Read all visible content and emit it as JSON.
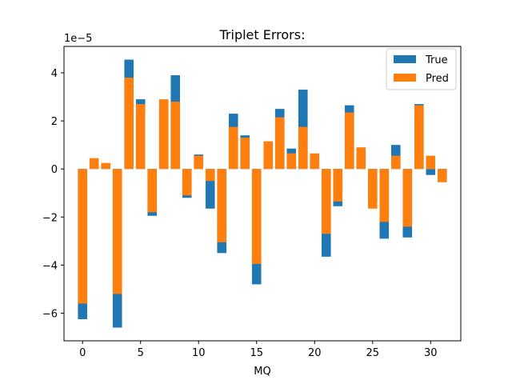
{
  "chart_data": {
    "type": "bar",
    "title": "Triplet Errors:",
    "xlabel": "MQ",
    "ylabel": "",
    "scale_label": "1e−5",
    "xlim": [
      -1.6,
      32.6
    ],
    "ylim": [
      -7.15,
      5.1
    ],
    "xticks": [
      0,
      5,
      10,
      15,
      20,
      25,
      30
    ],
    "yticks": [
      -6,
      -4,
      -2,
      0,
      2,
      4
    ],
    "ytick_labels": [
      "−6",
      "−4",
      "−2",
      "0",
      "2",
      "4"
    ],
    "legend_position": "upper-right",
    "x": [
      0,
      1,
      2,
      3,
      4,
      5,
      6,
      7,
      8,
      9,
      10,
      11,
      12,
      13,
      14,
      15,
      16,
      17,
      18,
      19,
      20,
      21,
      22,
      23,
      24,
      25,
      26,
      27,
      28,
      29,
      30,
      31
    ],
    "series": [
      {
        "name": "True",
        "color": "#1f77b4",
        "values": [
          -6.25,
          0.3,
          0.15,
          -6.6,
          4.55,
          2.9,
          -1.95,
          2.6,
          3.9,
          -1.2,
          0.6,
          -1.65,
          -3.5,
          2.3,
          1.4,
          -4.8,
          0.4,
          2.5,
          0.85,
          3.3,
          0.5,
          -3.65,
          -1.55,
          2.65,
          0.6,
          -1.4,
          -2.9,
          1.0,
          -2.85,
          2.7,
          -0.25,
          -0.4
        ]
      },
      {
        "name": "Pred",
        "color": "#ff7f0e",
        "values": [
          -5.6,
          0.45,
          0.25,
          -5.2,
          3.8,
          2.7,
          -1.8,
          2.9,
          2.8,
          -1.1,
          0.55,
          -0.5,
          -3.05,
          1.75,
          1.3,
          -3.95,
          1.15,
          2.15,
          0.65,
          1.75,
          0.65,
          -2.7,
          -1.35,
          2.35,
          0.9,
          -1.65,
          -2.2,
          0.55,
          -2.4,
          2.65,
          0.55,
          -0.55
        ]
      }
    ]
  }
}
